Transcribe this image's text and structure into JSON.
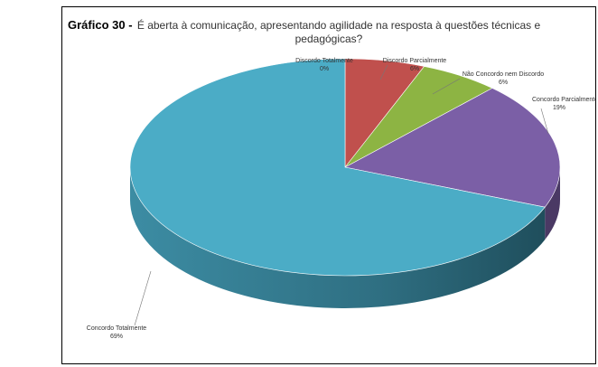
{
  "chart_data": {
    "type": "pie",
    "title_prefix": "Gráfico 30 -",
    "title_line1": "É aberta à comunicação, apresentando agilidade na resposta à questões técnicas e",
    "title_line2": "pedagógicas?",
    "slices": [
      {
        "name": "Discordo Totalmente",
        "value": 0,
        "pct": "0%",
        "color": "#4a8fc4"
      },
      {
        "name": "Discordo Parcialmente",
        "value": 6,
        "pct": "6%",
        "color": "#c0504d"
      },
      {
        "name": "Não Concordo nem Discordo",
        "value": 6,
        "pct": "6%",
        "color": "#8db443"
      },
      {
        "name": "Concordo Parcialmente",
        "value": 19,
        "pct": "19%",
        "color": "#7b5fa6"
      },
      {
        "name": "Concordo Totalmente",
        "value": 69,
        "pct": "69%",
        "color": "#4bacc6"
      }
    ]
  }
}
